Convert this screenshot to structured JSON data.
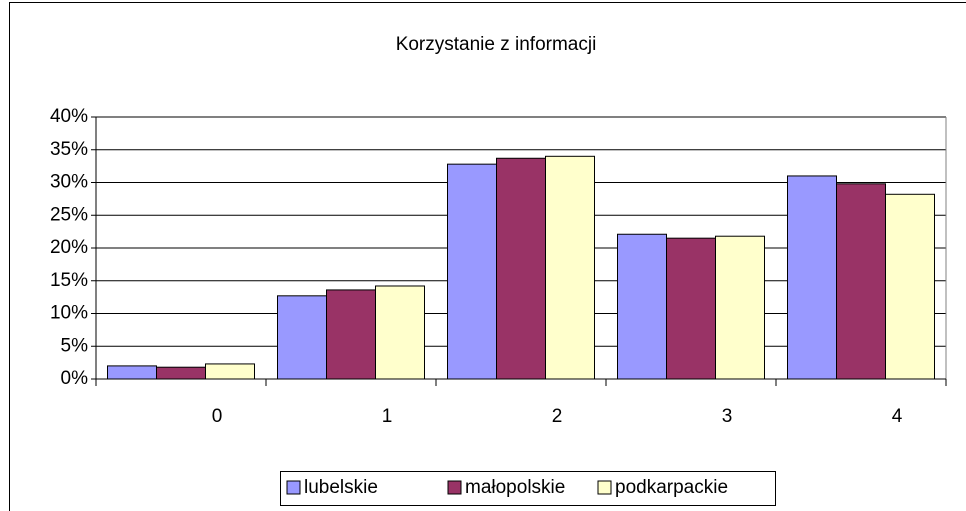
{
  "chart_data": {
    "type": "bar",
    "title": "Korzystanie z informacji",
    "categories": [
      "0",
      "1",
      "2",
      "3",
      "4"
    ],
    "series": [
      {
        "name": "lubelskie",
        "color": "#9999ff",
        "values": [
          2.0,
          12.7,
          32.8,
          22.1,
          31.0
        ]
      },
      {
        "name": "małopolskie",
        "color": "#993366",
        "values": [
          1.8,
          13.6,
          33.7,
          21.5,
          29.8
        ]
      },
      {
        "name": "podkarpackie",
        "color": "#ffffcc",
        "values": [
          2.3,
          14.2,
          34.0,
          21.8,
          28.2
        ]
      }
    ],
    "ylim": [
      0,
      40
    ],
    "yticks": [
      {
        "value": 0,
        "label": "0%"
      },
      {
        "value": 5,
        "label": "5%"
      },
      {
        "value": 10,
        "label": "10%"
      },
      {
        "value": 15,
        "label": "15%"
      },
      {
        "value": 20,
        "label": "20%"
      },
      {
        "value": 25,
        "label": "25%"
      },
      {
        "value": 30,
        "label": "30%"
      },
      {
        "value": 35,
        "label": "35%"
      },
      {
        "value": 40,
        "label": "40%"
      }
    ],
    "grid": true,
    "legend": "bottom"
  }
}
